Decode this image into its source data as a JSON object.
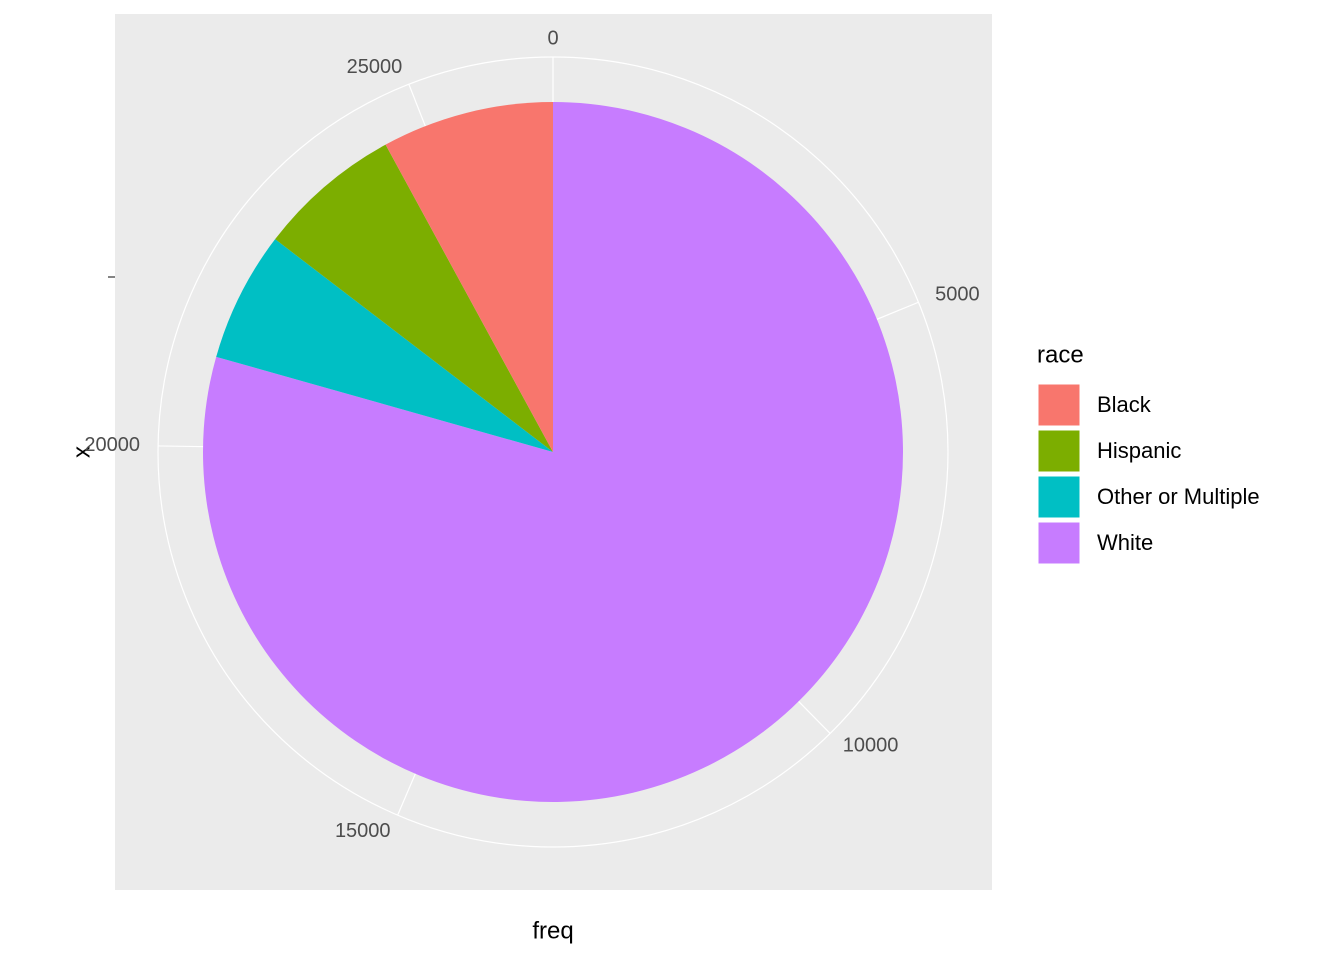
{
  "chart_data": {
    "type": "pie",
    "x_label": "freq",
    "y_label": "x",
    "legend_title": "race",
    "categories": [
      "Black",
      "Hispanic",
      "Other or Multiple",
      "White"
    ],
    "values": [
      2110,
      1770,
      1600,
      21100
    ],
    "colors": [
      "#F8766D",
      "#7CAE00",
      "#00BFC4",
      "#C77CFF"
    ],
    "ylim": [
      0,
      26580
    ],
    "yticks": [
      0,
      5000,
      10000,
      15000,
      20000,
      25000
    ],
    "grid": true,
    "legend": "right"
  }
}
